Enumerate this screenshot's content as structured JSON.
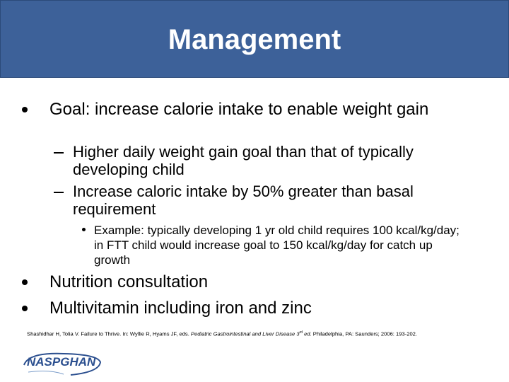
{
  "header": {
    "title": "Management"
  },
  "bullets": [
    {
      "text": "Goal:  increase calorie intake to enable weight gain",
      "children": [
        {
          "text": "Higher daily weight gain goal than that of typically developing child"
        },
        {
          "text": "Increase caloric intake by 50% greater than basal requirement",
          "children": [
            {
              "text": "Example:  typically developing 1 yr old child requires 100 kcal/kg/day; in FTT child would increase goal to 150 kcal/kg/day for catch up growth"
            }
          ]
        }
      ]
    },
    {
      "text": "Nutrition consultation"
    },
    {
      "text": "Multivitamin including iron and zinc"
    }
  ],
  "citation": {
    "parts": [
      "Shashidhar H, Tolia V.  Failure to Thrive. In: Wyllie R, Hyams JF, eds.  ",
      "Pediatric Gastrointestinal and Liver Disease 3",
      "rd",
      " ed.",
      "  Philadelphia, PA: Saunders; 2006: 193-202."
    ]
  },
  "logo": {
    "text": "NASPGHAN"
  }
}
